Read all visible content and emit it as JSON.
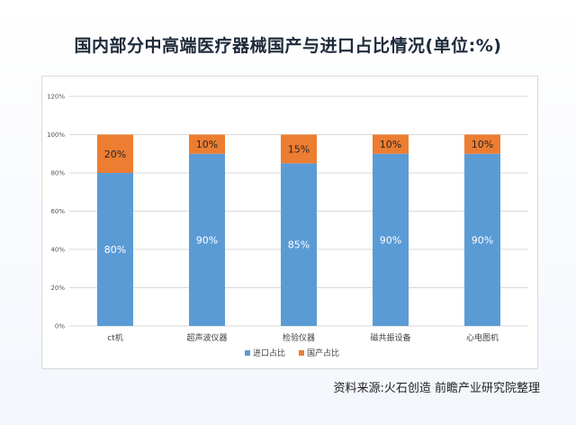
{
  "chart_data": {
    "type": "bar",
    "stacked": true,
    "title": "国内部分中高端医疗器械国产与进口占比情况(单位:%)",
    "categories": [
      "ct机",
      "超声波仪器",
      "检验仪器",
      "磁共振设备",
      "心电图机"
    ],
    "series": [
      {
        "name": "进口占比",
        "values": [
          80,
          90,
          85,
          90,
          90
        ],
        "labels": [
          "80%",
          "90%",
          "85%",
          "90%",
          "90%"
        ],
        "color": "#5b9bd5"
      },
      {
        "name": "国产占比",
        "values": [
          20,
          10,
          15,
          10,
          10
        ],
        "labels": [
          "20%",
          "10%",
          "15%",
          "10%",
          "10%"
        ],
        "color": "#ed7d31"
      }
    ],
    "yticks": [
      "0%",
      "20%",
      "40%",
      "60%",
      "80%",
      "100%",
      "120%"
    ],
    "ylim": [
      0,
      120
    ],
    "grid": true,
    "legend": "bottom"
  },
  "source": "资料来源:火石创造 前瞻产业研究院整理"
}
